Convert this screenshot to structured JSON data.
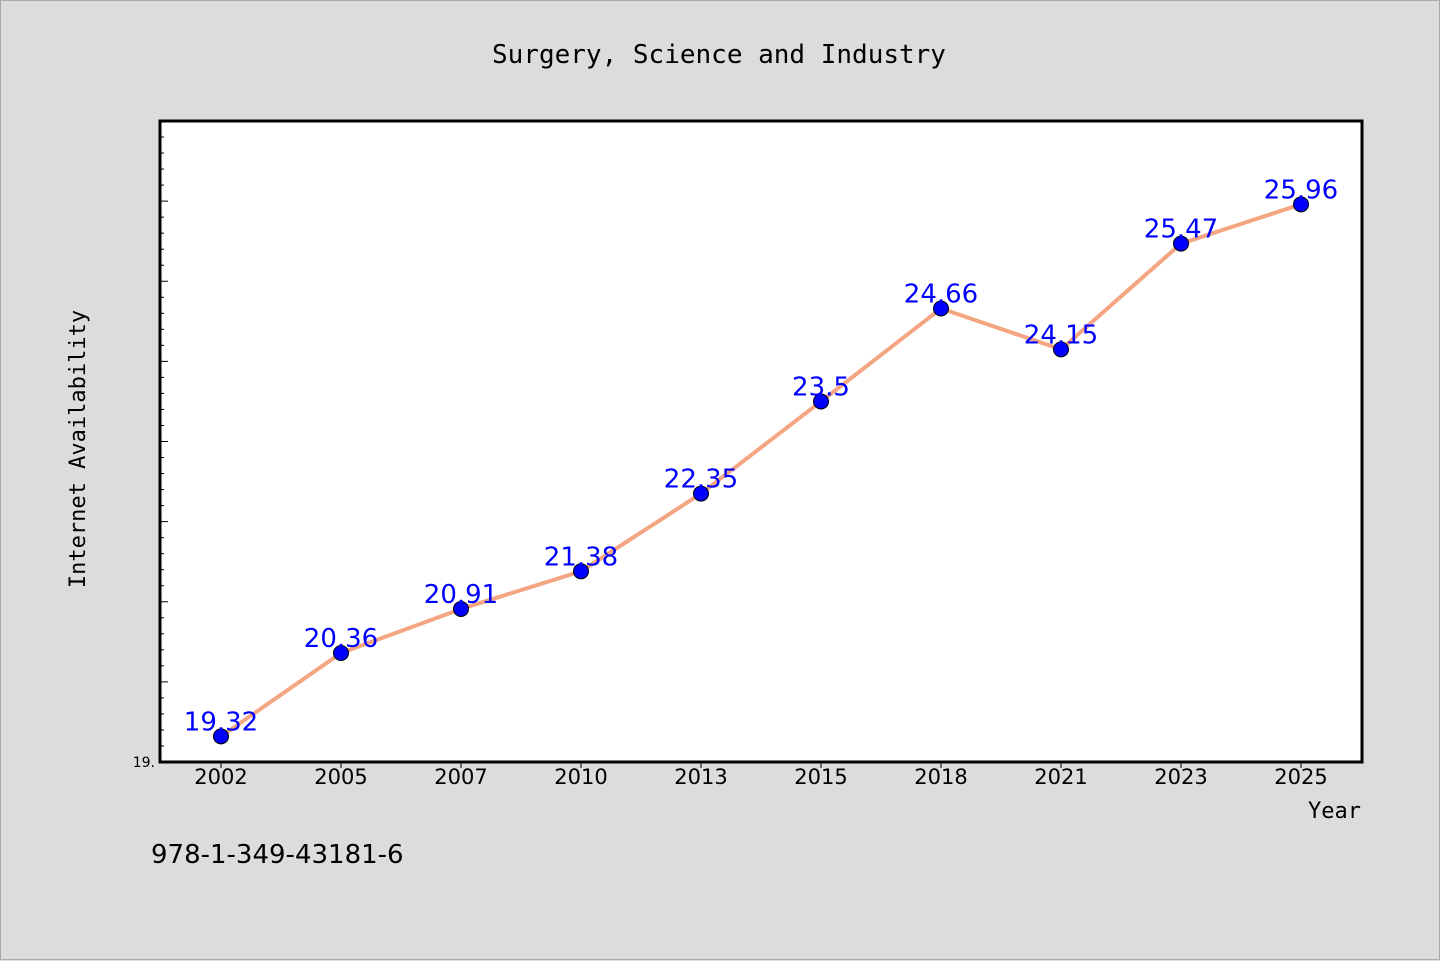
{
  "chart_data": {
    "type": "line",
    "title": "Surgery, Science and Industry",
    "xlabel": "Year",
    "ylabel": "Internet Availability",
    "categories": [
      "2002",
      "2005",
      "2007",
      "2010",
      "2013",
      "2015",
      "2018",
      "2021",
      "2023",
      "2025"
    ],
    "series": [
      {
        "values": [
          19.32,
          20.36,
          20.91,
          21.38,
          22.35,
          23.5,
          24.66,
          24.15,
          25.47,
          25.96
        ],
        "labels": [
          "19.32",
          "20.36",
          "20.91",
          "21.38",
          "22.35",
          "23.5",
          "24.66",
          "24.15",
          "25.47",
          "25.96"
        ]
      }
    ],
    "y_tick_labels": [
      "19."
    ],
    "ylim": [
      19.0,
      27.0
    ],
    "grid": false,
    "line_color": "#f4a582",
    "marker_color": "#0000ff",
    "label_color": "#0000ff"
  },
  "footer": {
    "isbn": "978-1-349-43181-6"
  }
}
